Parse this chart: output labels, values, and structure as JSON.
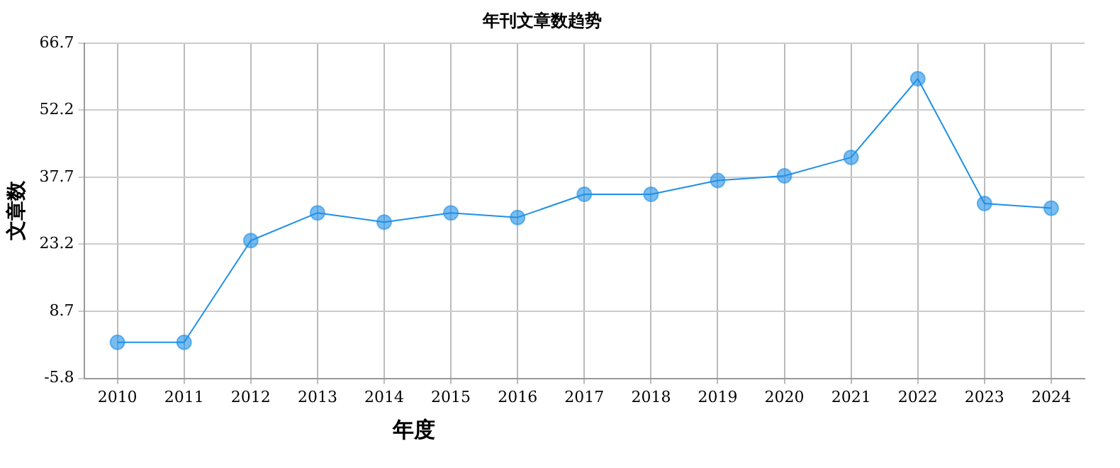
{
  "chart_data": {
    "type": "line",
    "title": "年刊文章数趋势",
    "xlabel": "年度",
    "ylabel": "文章数",
    "categories": [
      "2010",
      "2011",
      "2012",
      "2013",
      "2014",
      "2015",
      "2016",
      "2017",
      "2018",
      "2019",
      "2020",
      "2021",
      "2022",
      "2023",
      "2024"
    ],
    "series": [
      {
        "color": "#1e90e8",
        "values": [
          2,
          2,
          24,
          30,
          28,
          30,
          29,
          34,
          34,
          37,
          38,
          42,
          59,
          32,
          31
        ]
      }
    ],
    "ylim": [
      -5.8,
      66.7
    ],
    "yticks": [
      -5.8,
      8.7,
      23.2,
      37.7,
      52.2,
      66.7
    ],
    "grid": true,
    "legend": false,
    "marker": "circle",
    "line_style": "solid"
  }
}
